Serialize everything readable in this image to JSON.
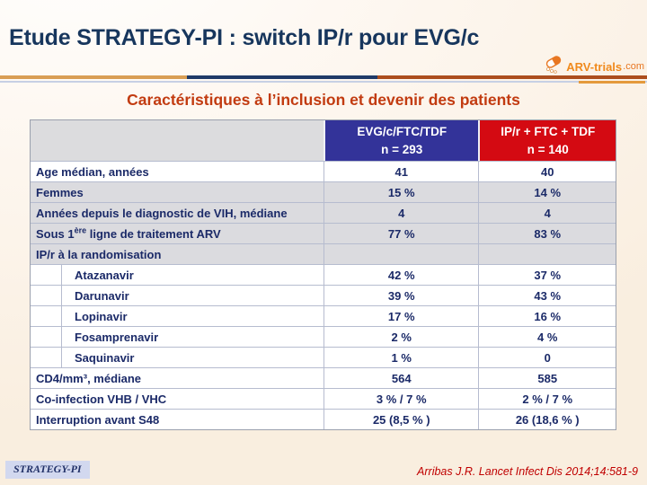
{
  "slide": {
    "title": "Etude STRATEGY-PI : switch IP/r pour EVG/c",
    "subtitle": "Caractéristiques à l’inclusion et devenir des patients",
    "footer_badge": "STRATEGY-PI",
    "reference": "Arribas J.R. Lancet Infect Dis 2014;14:581-9",
    "logo": {
      "icon": "pill-capsule-icon",
      "main": "ARV-trials",
      "suffix": ".com"
    }
  },
  "table": {
    "header": {
      "evg": {
        "line1": "EVG/c/FTC/TDF",
        "line2": "n = 293"
      },
      "ipr": {
        "line1": "IP/r + FTC + TDF",
        "line2": "n = 140"
      }
    },
    "rows": [
      {
        "label": "Age médian, années",
        "evg": "41",
        "ipr": "40",
        "shaded": false,
        "indent": false
      },
      {
        "label": "Femmes",
        "evg": "15 %",
        "ipr": "14 %",
        "shaded": true,
        "indent": false
      },
      {
        "label": "Années depuis le diagnostic de VIH, médiane",
        "evg": "4",
        "ipr": "4",
        "shaded": true,
        "indent": false
      },
      {
        "label_pre": "Sous 1",
        "label_sup": "ère",
        "label_post": " ligne de traitement ARV",
        "evg": "77 %",
        "ipr": "83 %",
        "shaded": true,
        "indent": false
      },
      {
        "label": "IP/r à la randomisation",
        "evg": "",
        "ipr": "",
        "shaded": true,
        "indent": false
      },
      {
        "label": "Atazanavir",
        "evg": "42 %",
        "ipr": "37 %",
        "shaded": false,
        "indent": true
      },
      {
        "label": "Darunavir",
        "evg": "39 %",
        "ipr": "43 %",
        "shaded": false,
        "indent": true
      },
      {
        "label": "Lopinavir",
        "evg": "17 %",
        "ipr": "16 %",
        "shaded": false,
        "indent": true
      },
      {
        "label": "Fosamprenavir",
        "evg": "2 %",
        "ipr": "4 %",
        "shaded": false,
        "indent": true
      },
      {
        "label": "Saquinavir",
        "evg": "1 %",
        "ipr": "0",
        "shaded": false,
        "indent": true
      },
      {
        "label": "CD4/mm³, médiane",
        "evg": "564",
        "ipr": "585",
        "shaded": false,
        "indent": false
      },
      {
        "label": "Co-infection VHB / VHC",
        "evg": "3 % / 7 %",
        "ipr": "2 % / 7 %",
        "shaded": false,
        "indent": false
      },
      {
        "label": "Interruption avant S48",
        "evg": "25 (8,5 % )",
        "ipr": "26 (18,6 % )",
        "shaded": false,
        "indent": false
      }
    ]
  },
  "colors": {
    "title_navy": "#17365d",
    "subtitle_red": "#c23b10",
    "header_blue": "#333399",
    "header_red": "#d40a12",
    "table_text_navy": "#1b2a68",
    "shaded_row_gray": "#dbdbdf",
    "divider_gold": "#d99e55",
    "divider_navy": "#1f3a68",
    "divider_rust": "#ac4e1e",
    "logo_orange": "#f08a1d",
    "reference_red": "#c00000",
    "background_cream": "#f9eedf"
  }
}
